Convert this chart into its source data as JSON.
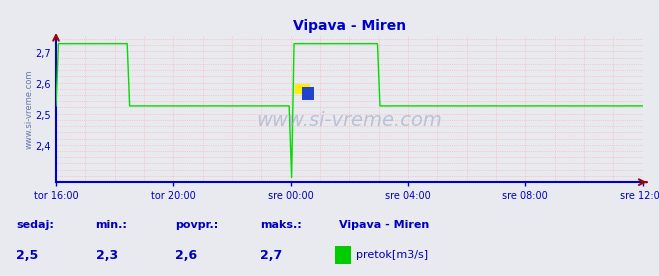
{
  "title": "Vipava - Miren",
  "title_color": "#0000cc",
  "bg_color": "#e8eaf0",
  "plot_bg_color": "#e8eaf0",
  "line_color": "#00dd00",
  "axis_color": "#0000cc",
  "grid_color_v": "#ffaaaa",
  "grid_color_h": "#ffaaaa",
  "ylim": [
    2.285,
    2.755
  ],
  "yticks": [
    2.4,
    2.5,
    2.6,
    2.7
  ],
  "ytick_labels": [
    "2,4",
    "2,5",
    "2,6",
    "2,7"
  ],
  "xtick_labels": [
    "tor 16:00",
    "tor 20:00",
    "sre 00:00",
    "sre 04:00",
    "sre 08:00",
    "sre 12:00"
  ],
  "n_hours": 20,
  "footer_labels": [
    "sedaj:",
    "min.:",
    "povpr.:",
    "maks.:"
  ],
  "footer_values": [
    "2,5",
    "2,3",
    "2,6",
    "2,7"
  ],
  "footer_station": "Vipava - Miren",
  "footer_legend_label": "pretok[m3/s]",
  "legend_color": "#00cc00",
  "footer_color": "#0000bb",
  "ylabel_text": "www.si-vreme.com",
  "watermark": "www.si-vreme.com"
}
